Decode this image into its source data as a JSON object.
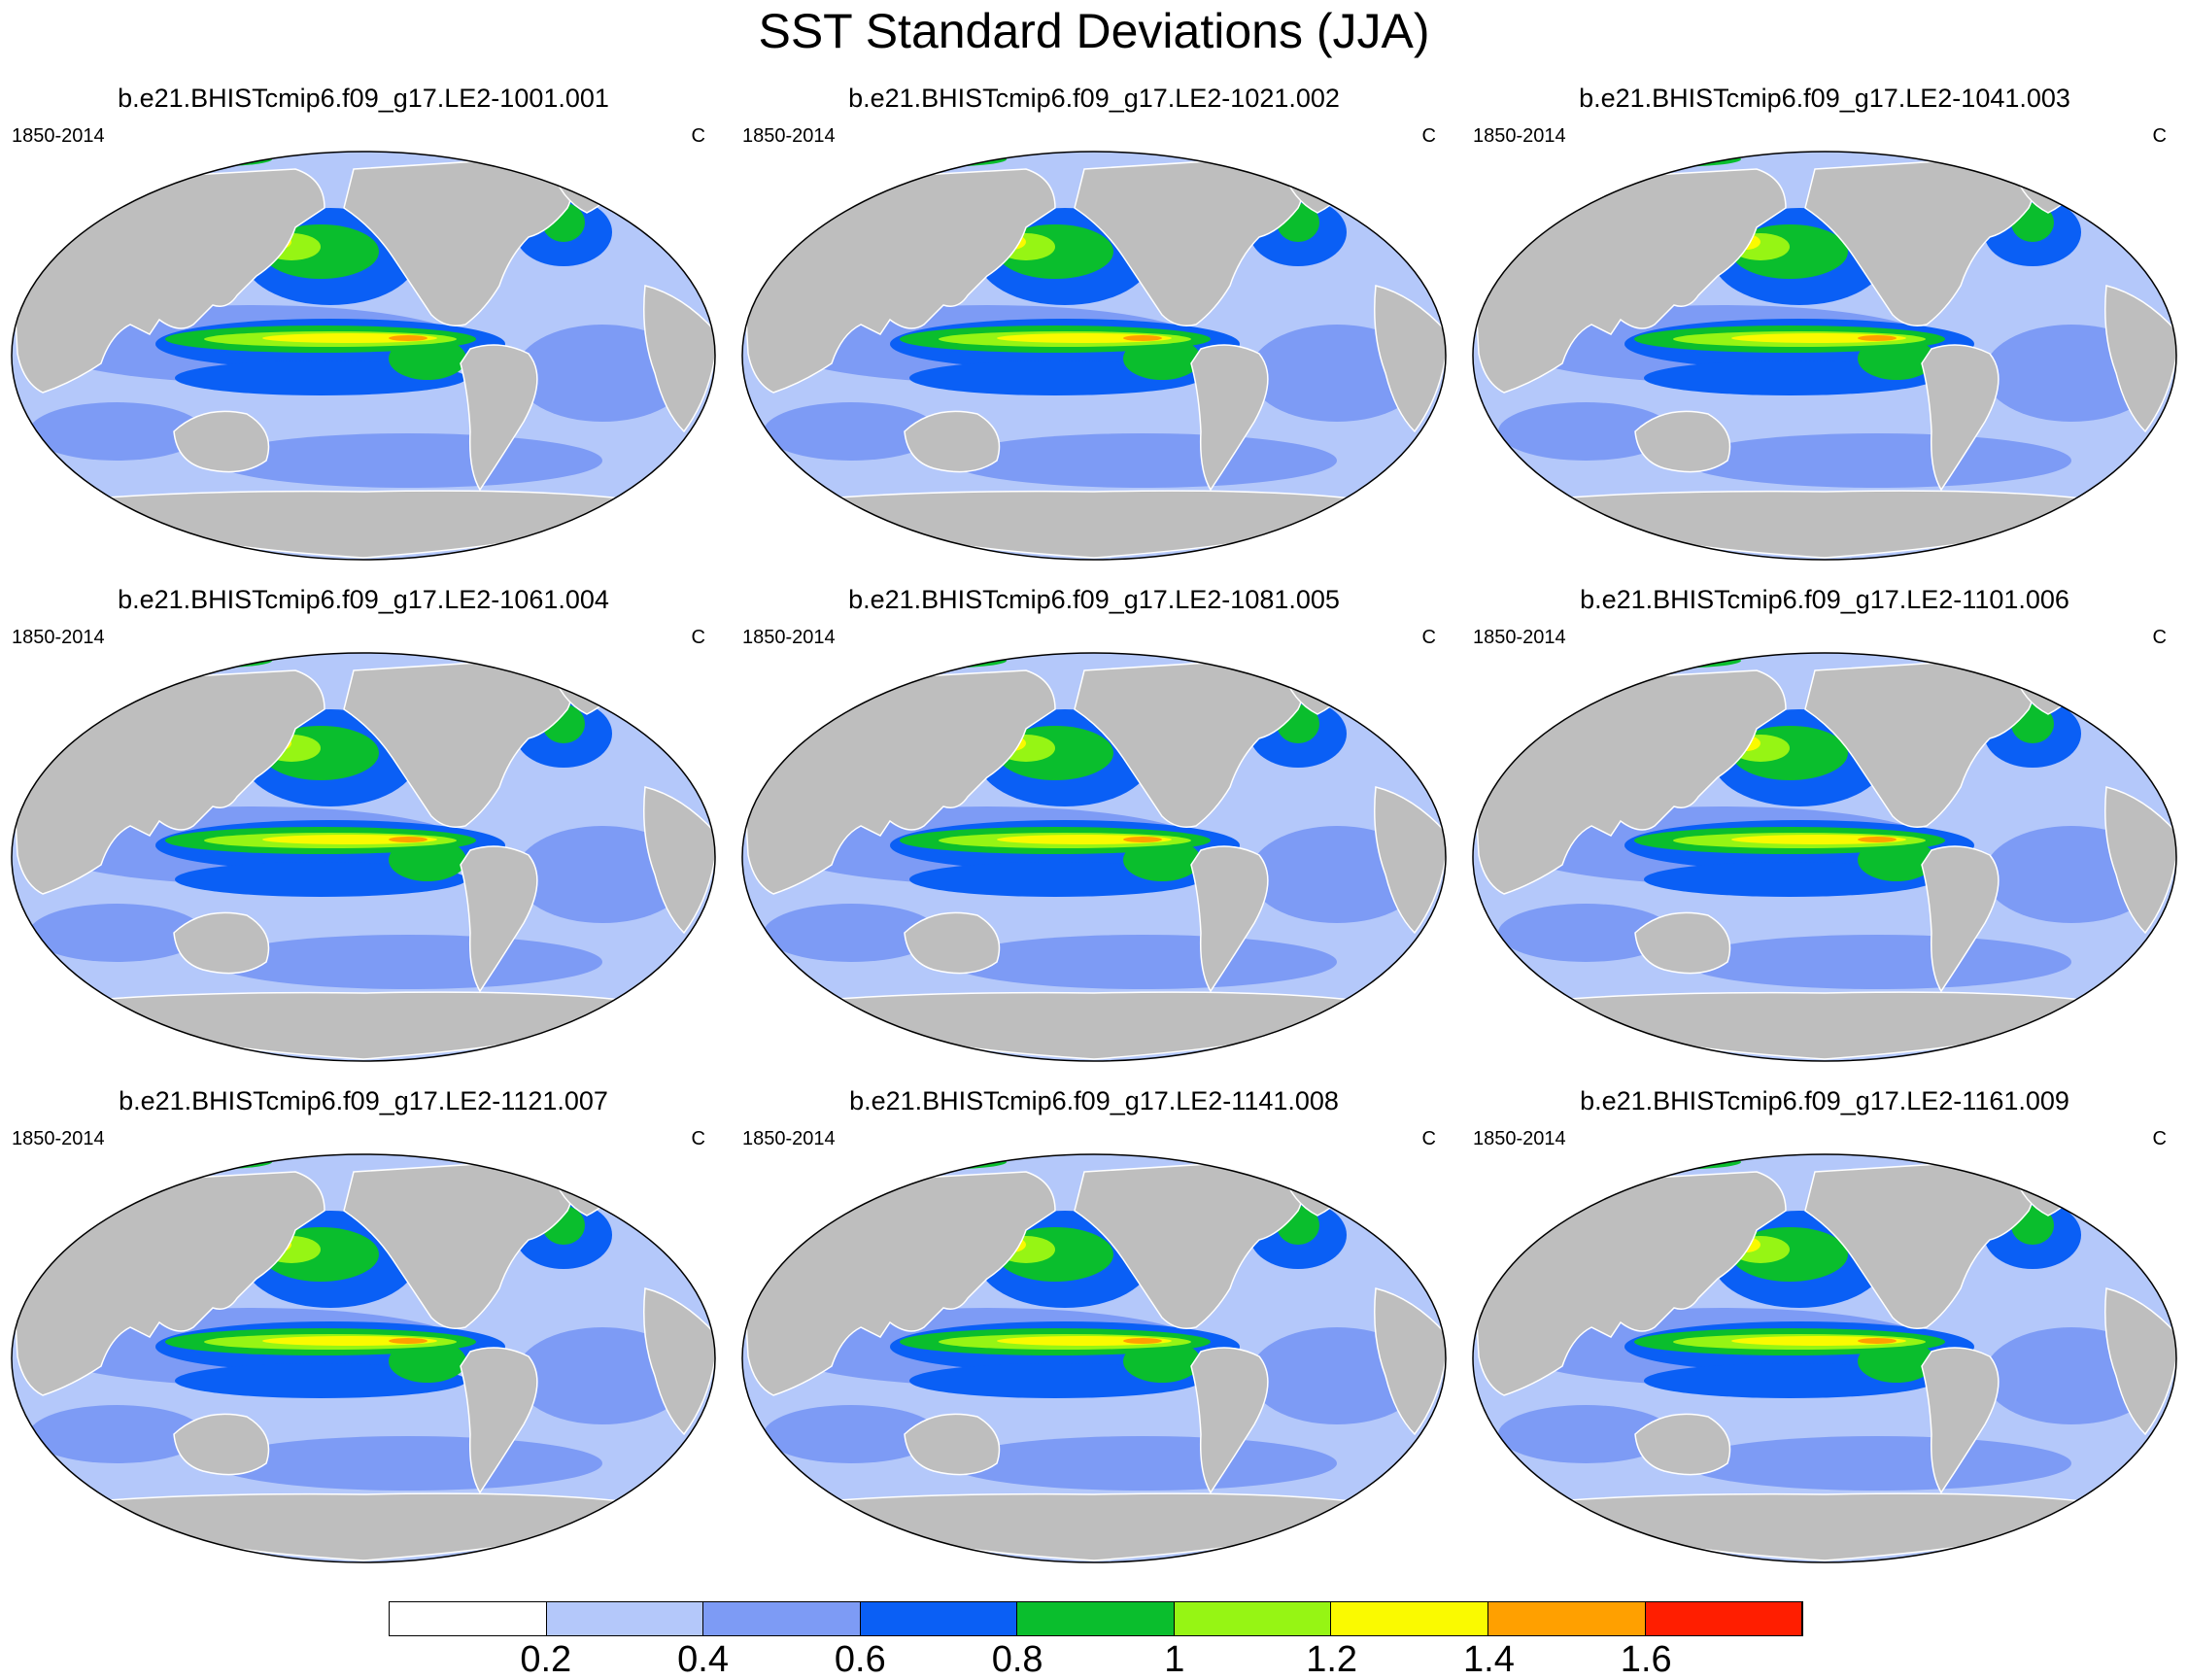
{
  "title": "SST Standard Deviations (JJA)",
  "panels": [
    {
      "title": "b.e21.BHISTcmip6.f09_g17.LE2-1001.001",
      "left": "1850-2014",
      "right": "C"
    },
    {
      "title": "b.e21.BHISTcmip6.f09_g17.LE2-1021.002",
      "left": "1850-2014",
      "right": "C"
    },
    {
      "title": "b.e21.BHISTcmip6.f09_g17.LE2-1041.003",
      "left": "1850-2014",
      "right": "C"
    },
    {
      "title": "b.e21.BHISTcmip6.f09_g17.LE2-1061.004",
      "left": "1850-2014",
      "right": "C"
    },
    {
      "title": "b.e21.BHISTcmip6.f09_g17.LE2-1081.005",
      "left": "1850-2014",
      "right": "C"
    },
    {
      "title": "b.e21.BHISTcmip6.f09_g17.LE2-1101.006",
      "left": "1850-2014",
      "right": "C"
    },
    {
      "title": "b.e21.BHISTcmip6.f09_g17.LE2-1121.007",
      "left": "1850-2014",
      "right": "C"
    },
    {
      "title": "b.e21.BHISTcmip6.f09_g17.LE2-1141.008",
      "left": "1850-2014",
      "right": "C"
    },
    {
      "title": "b.e21.BHISTcmip6.f09_g17.LE2-1161.009",
      "left": "1850-2014",
      "right": "C"
    }
  ],
  "colorbar": {
    "colors": [
      "#ffffff",
      "#b4c8fa",
      "#7d9bf5",
      "#0a5ff5",
      "#0abe2d",
      "#96f514",
      "#fafa00",
      "#ffa000",
      "#ff1e00"
    ],
    "labels": [
      "0.2",
      "0.4",
      "0.6",
      "0.8",
      "1",
      "1.2",
      "1.4",
      "1.6"
    ]
  },
  "colors": {
    "land": "#bebebe",
    "ocean_base": "#b4c8fa"
  }
}
